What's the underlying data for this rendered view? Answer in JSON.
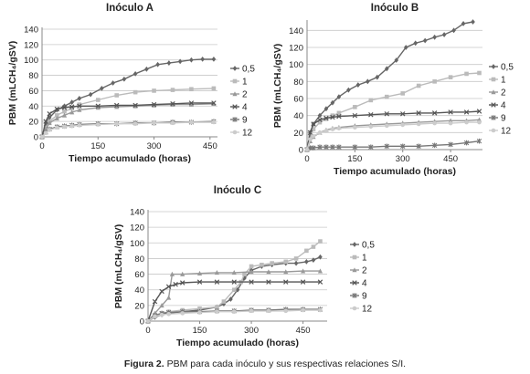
{
  "caption": {
    "label": "Figura 2.",
    "text": "PBM para cada inóculo y sus respectivas relaciones S/I."
  },
  "chart_data": [
    {
      "type": "line",
      "title": "Inóculo A",
      "xlabel": "Tiempo acumulado  (horas)",
      "ylabel": "PBM (mLCH₄/gSV)",
      "xlim": [
        0,
        470
      ],
      "ylim": [
        0,
        140
      ],
      "xticks": [
        "0",
        "150",
        "300",
        "450"
      ],
      "yticks": [
        "0",
        "20",
        "40",
        "60",
        "80",
        "100",
        "120",
        "140"
      ],
      "grid": true,
      "legend_position": "right",
      "series": [
        {
          "name": "0,5",
          "color": "#666666",
          "marker": "diamond",
          "x": [
            0,
            10,
            20,
            40,
            60,
            80,
            100,
            130,
            160,
            190,
            220,
            250,
            280,
            310,
            340,
            370,
            400,
            430,
            460
          ],
          "y": [
            0,
            15,
            25,
            35,
            40,
            45,
            50,
            55,
            63,
            70,
            75,
            82,
            88,
            94,
            96,
            98,
            100,
            101,
            101
          ]
        },
        {
          "name": "1",
          "color": "#bbbbbb",
          "marker": "square",
          "x": [
            0,
            10,
            20,
            40,
            60,
            80,
            100,
            150,
            200,
            250,
            300,
            350,
            400,
            460
          ],
          "y": [
            0,
            12,
            20,
            28,
            33,
            37,
            42,
            48,
            54,
            58,
            60,
            61,
            62,
            63
          ]
        },
        {
          "name": "2",
          "color": "#999999",
          "marker": "triangle",
          "x": [
            0,
            10,
            20,
            40,
            60,
            80,
            100,
            150,
            200,
            250,
            300,
            350,
            400,
            460
          ],
          "y": [
            0,
            10,
            18,
            24,
            28,
            32,
            35,
            38,
            39,
            40,
            41,
            42,
            42,
            43
          ]
        },
        {
          "name": "4",
          "color": "#555555",
          "marker": "x",
          "x": [
            0,
            10,
            20,
            40,
            60,
            80,
            100,
            150,
            200,
            250,
            300,
            350,
            400,
            460
          ],
          "y": [
            0,
            20,
            30,
            36,
            38,
            39,
            40,
            40,
            41,
            41,
            42,
            43,
            44,
            44
          ]
        },
        {
          "name": "9",
          "color": "#777777",
          "marker": "star",
          "x": [
            0,
            10,
            20,
            40,
            60,
            80,
            100,
            150,
            200,
            250,
            300,
            350,
            400,
            460
          ],
          "y": [
            0,
            6,
            10,
            13,
            14,
            15,
            16,
            17,
            17,
            18,
            18,
            19,
            19,
            20
          ]
        },
        {
          "name": "12",
          "color": "#cccccc",
          "marker": "circle",
          "x": [
            0,
            10,
            20,
            40,
            60,
            80,
            100,
            150,
            200,
            250,
            300,
            350,
            400,
            460
          ],
          "y": [
            0,
            5,
            9,
            12,
            13,
            14,
            15,
            16,
            17,
            17,
            18,
            18,
            19,
            19
          ]
        }
      ]
    },
    {
      "type": "line",
      "title": "Inóculo B",
      "xlabel": "Tiempo acumulado  (horas)",
      "ylabel": "PBM (mLCH₄/gSV)",
      "xlim": [
        0,
        550
      ],
      "ylim": [
        0,
        150
      ],
      "xticks": [
        "0",
        "150",
        "300",
        "450"
      ],
      "yticks": [
        "0",
        "20",
        "40",
        "60",
        "80",
        "100",
        "120",
        "140"
      ],
      "grid": true,
      "legend_position": "right",
      "series": [
        {
          "name": "0,5",
          "color": "#666666",
          "marker": "diamond",
          "x": [
            0,
            10,
            20,
            40,
            60,
            80,
            100,
            130,
            160,
            190,
            220,
            250,
            280,
            310,
            340,
            370,
            400,
            430,
            460,
            490,
            520
          ],
          "y": [
            0,
            20,
            30,
            40,
            48,
            55,
            62,
            70,
            76,
            80,
            85,
            95,
            105,
            120,
            125,
            128,
            132,
            135,
            140,
            148,
            150
          ]
        },
        {
          "name": "1",
          "color": "#bbbbbb",
          "marker": "square",
          "x": [
            0,
            10,
            20,
            40,
            60,
            80,
            100,
            150,
            200,
            250,
            300,
            350,
            400,
            450,
            500,
            540
          ],
          "y": [
            0,
            15,
            24,
            32,
            36,
            40,
            43,
            50,
            58,
            62,
            66,
            75,
            80,
            85,
            89,
            90
          ]
        },
        {
          "name": "2",
          "color": "#999999",
          "marker": "triangle",
          "x": [
            0,
            10,
            20,
            40,
            60,
            80,
            100,
            150,
            200,
            250,
            300,
            350,
            400,
            450,
            500,
            540
          ],
          "y": [
            0,
            10,
            15,
            20,
            23,
            25,
            26,
            28,
            29,
            30,
            31,
            32,
            33,
            34,
            34,
            35
          ]
        },
        {
          "name": "4",
          "color": "#555555",
          "marker": "x",
          "x": [
            0,
            10,
            20,
            40,
            60,
            80,
            100,
            150,
            200,
            250,
            300,
            350,
            400,
            450,
            500,
            540
          ],
          "y": [
            0,
            20,
            30,
            35,
            37,
            38,
            39,
            40,
            41,
            42,
            42,
            43,
            43,
            44,
            44,
            45
          ]
        },
        {
          "name": "9",
          "color": "#777777",
          "marker": "star",
          "x": [
            0,
            10,
            20,
            40,
            60,
            80,
            100,
            150,
            200,
            250,
            300,
            350,
            400,
            450,
            500,
            540
          ],
          "y": [
            0,
            2,
            2,
            3,
            3,
            3,
            3,
            3,
            3,
            4,
            4,
            4,
            5,
            6,
            8,
            10
          ]
        },
        {
          "name": "12",
          "color": "#cccccc",
          "marker": "circle",
          "x": [
            0,
            10,
            20,
            40,
            60,
            80,
            100,
            150,
            200,
            250,
            300,
            350,
            400,
            450,
            500,
            540
          ],
          "y": [
            0,
            12,
            16,
            20,
            22,
            24,
            25,
            26,
            27,
            28,
            29,
            30,
            31,
            31,
            32,
            32
          ]
        }
      ]
    },
    {
      "type": "line",
      "title": "Inóculo C",
      "xlabel": "Tiempo acumulado  (horas)",
      "ylabel": "PBM (mLCH₄/gSV)",
      "xlim": [
        0,
        520
      ],
      "ylim": [
        0,
        140
      ],
      "xticks": [
        "0",
        "150",
        "300",
        "450"
      ],
      "yticks": [
        "0",
        "20",
        "40",
        "60",
        "80",
        "100",
        "120",
        "140"
      ],
      "grid": true,
      "legend_position": "right",
      "series": [
        {
          "name": "0,5",
          "color": "#666666",
          "marker": "diamond",
          "x": [
            0,
            20,
            40,
            60,
            100,
            150,
            200,
            220,
            240,
            260,
            280,
            300,
            330,
            360,
            400,
            430,
            460,
            480,
            500
          ],
          "y": [
            0,
            5,
            8,
            10,
            12,
            14,
            18,
            22,
            28,
            40,
            55,
            65,
            70,
            72,
            74,
            74,
            76,
            78,
            82
          ]
        },
        {
          "name": "1",
          "color": "#bbbbbb",
          "marker": "square",
          "x": [
            0,
            20,
            40,
            60,
            100,
            150,
            200,
            220,
            250,
            270,
            280,
            300,
            330,
            360,
            400,
            430,
            460,
            480,
            500
          ],
          "y": [
            0,
            8,
            10,
            12,
            14,
            16,
            18,
            25,
            40,
            50,
            60,
            70,
            72,
            74,
            76,
            80,
            90,
            95,
            102
          ]
        },
        {
          "name": "2",
          "color": "#999999",
          "marker": "triangle",
          "x": [
            0,
            20,
            40,
            60,
            70,
            100,
            150,
            200,
            250,
            300,
            350,
            400,
            450,
            500
          ],
          "y": [
            0,
            10,
            20,
            30,
            60,
            60,
            61,
            62,
            62,
            63,
            63,
            63,
            64,
            64
          ]
        },
        {
          "name": "4",
          "color": "#555555",
          "marker": "x",
          "x": [
            0,
            20,
            40,
            60,
            80,
            100,
            150,
            200,
            250,
            300,
            350,
            400,
            450,
            500
          ],
          "y": [
            0,
            25,
            38,
            44,
            47,
            49,
            50,
            50,
            50,
            50,
            50,
            50,
            50,
            50
          ]
        },
        {
          "name": "9",
          "color": "#777777",
          "marker": "star",
          "x": [
            0,
            20,
            40,
            60,
            100,
            150,
            200,
            250,
            300,
            350,
            400,
            450,
            500
          ],
          "y": [
            0,
            7,
            10,
            11,
            12,
            12,
            13,
            13,
            14,
            14,
            15,
            15,
            15
          ]
        },
        {
          "name": "12",
          "color": "#cccccc",
          "marker": "circle",
          "x": [
            0,
            20,
            40,
            60,
            100,
            150,
            200,
            250,
            300,
            350,
            400,
            450,
            500
          ],
          "y": [
            0,
            6,
            8,
            9,
            10,
            11,
            12,
            12,
            13,
            13,
            13,
            14,
            14
          ]
        }
      ]
    }
  ]
}
